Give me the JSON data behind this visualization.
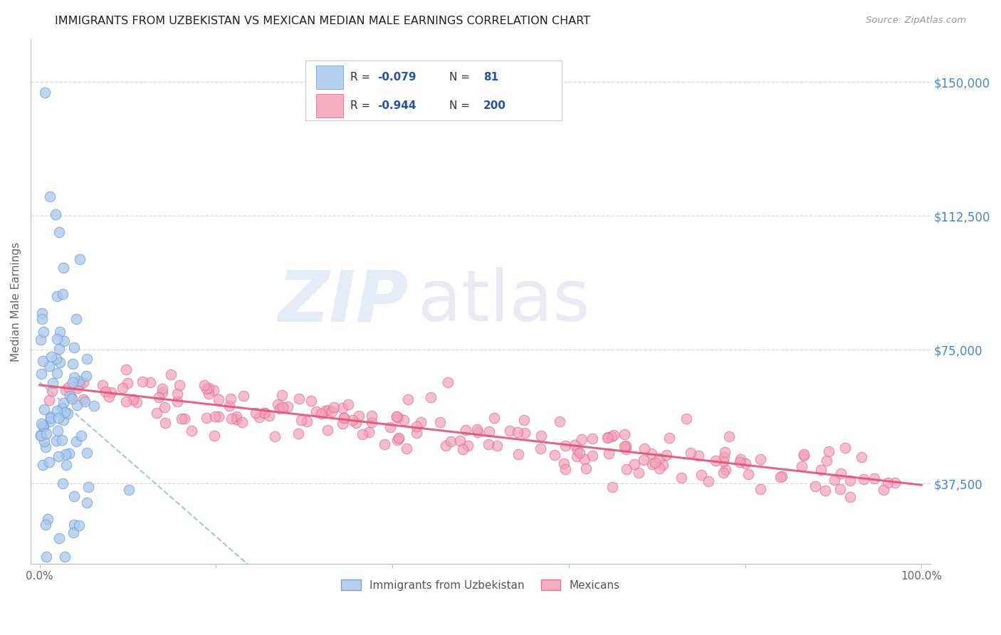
{
  "title": "IMMIGRANTS FROM UZBEKISTAN VS MEXICAN MEDIAN MALE EARNINGS CORRELATION CHART",
  "source": "Source: ZipAtlas.com",
  "ylabel": "Median Male Earnings",
  "ytick_labels": [
    "$37,500",
    "$75,000",
    "$112,500",
    "$150,000"
  ],
  "ytick_values": [
    37500,
    75000,
    112500,
    150000
  ],
  "ymin": 15000,
  "ymax": 162000,
  "xmin": -0.01,
  "xmax": 1.01,
  "uzbekistan_R": -0.079,
  "uzbekistan_N": 81,
  "mexican_R": -0.944,
  "mexican_N": 200,
  "uz_color": "#a8c8ee",
  "uz_ec": "#6699cc",
  "mex_color": "#f4a0b8",
  "mex_ec": "#dd6688",
  "trend_uz_color": "#99bbdd",
  "trend_mex_color": "#dd5577",
  "watermark_zip": "ZIP",
  "watermark_atlas": "atlas",
  "background_color": "#ffffff",
  "grid_color": "#ccddee",
  "title_color": "#222222",
  "source_color": "#999999",
  "axis_label_color": "#666666",
  "right_tick_color": "#4488cc",
  "legend_text_color": "#333333",
  "legend_val_color": "#2255aa",
  "legend_box_ec": "#cccccc",
  "bottom_legend_color": "#555555"
}
